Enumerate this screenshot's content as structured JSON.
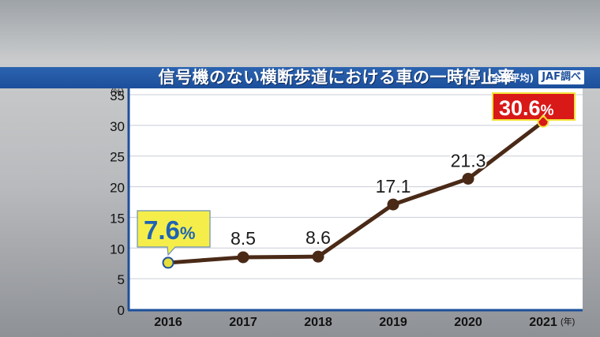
{
  "title": {
    "main": "信号機のない横断歩道における車の一時停止率",
    "sub": "(全国平均)",
    "source": "JAF調べ"
  },
  "chart_data": {
    "type": "line",
    "x": [
      "2016",
      "2017",
      "2018",
      "2019",
      "2020",
      "2021"
    ],
    "values": [
      7.6,
      8.5,
      8.6,
      17.1,
      21.3,
      30.6
    ],
    "data_labels": [
      "7.6%",
      "8.5",
      "8.6",
      "17.1",
      "21.3",
      "30.6%"
    ],
    "y_unit": "(%)",
    "x_unit": "(年)",
    "ylim": [
      0,
      35
    ],
    "yticks": [
      0,
      5,
      10,
      15,
      20,
      25,
      30,
      35
    ],
    "grid": true,
    "colors": {
      "line": "#4a2a17",
      "marker": "#4a2a17",
      "first_callout_bg": "#f5ee4a",
      "first_callout_text": "#1f63b4",
      "last_callout_bg": "#d91818",
      "last_callout_text": "#ffffff",
      "first_marker": "#e5de3c",
      "last_marker": "#d91818"
    }
  }
}
